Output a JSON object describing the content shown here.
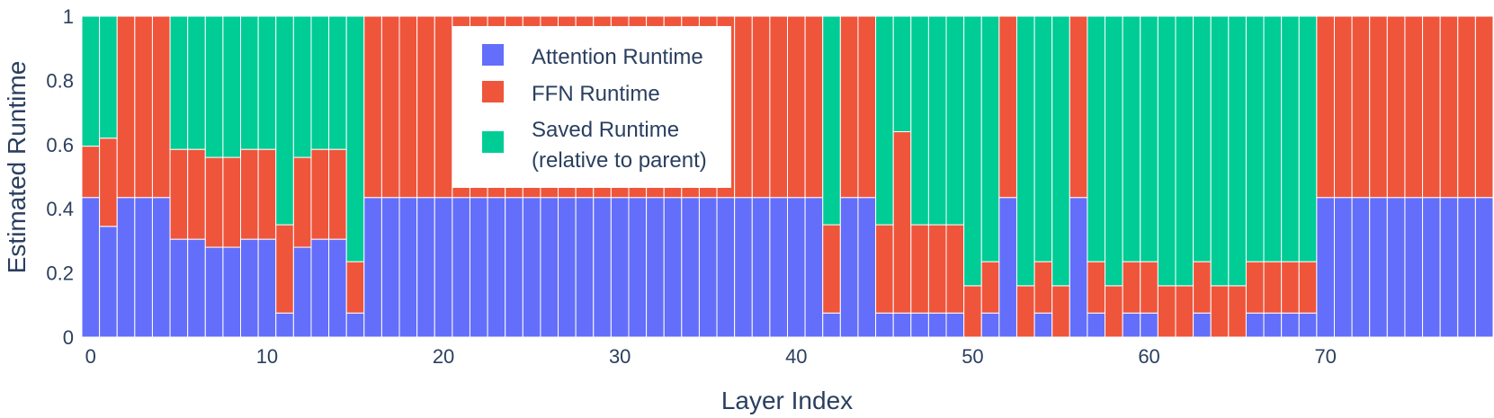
{
  "chart_data": {
    "type": "bar",
    "stacked": true,
    "xlabel": "Layer Index",
    "ylabel": "Estimated Runtime",
    "ylim": [
      0,
      1
    ],
    "xlim": [
      -0.5,
      79.5
    ],
    "xticks": [
      0,
      10,
      20,
      30,
      40,
      50,
      60,
      70
    ],
    "yticks": [
      0,
      0.2,
      0.4,
      0.6,
      0.8,
      1
    ],
    "ytick_labels": [
      "0",
      "0.2",
      "0.4",
      "0.6",
      "0.8",
      "1"
    ],
    "grid": false,
    "legend_position": "top-center",
    "legend": [
      "Attention Runtime",
      "FFN Runtime",
      "Saved Runtime",
      "(relative to parent)"
    ],
    "series": [
      {
        "name": "Attention Runtime",
        "color": "#636efa",
        "values": [
          0.435,
          0.345,
          0.435,
          0.435,
          0.435,
          0.305,
          0.305,
          0.28,
          0.28,
          0.305,
          0.305,
          0.075,
          0.28,
          0.305,
          0.305,
          0.075,
          0.435,
          0.435,
          0.435,
          0.435,
          0.435,
          0.435,
          0.435,
          0.435,
          0.435,
          0.435,
          0.435,
          0.435,
          0.435,
          0.435,
          0.435,
          0.435,
          0.435,
          0.435,
          0.435,
          0.435,
          0.435,
          0.435,
          0.435,
          0.435,
          0.435,
          0.435,
          0.075,
          0.435,
          0.435,
          0.075,
          0.075,
          0.075,
          0.075,
          0.075,
          0,
          0.075,
          0.435,
          0,
          0.075,
          0,
          0.435,
          0.075,
          0,
          0.075,
          0.075,
          0,
          0,
          0.075,
          0,
          0,
          0.075,
          0.075,
          0.075,
          0.075,
          0.435,
          0.435,
          0.435,
          0.435,
          0.435,
          0.435,
          0.435,
          0.435,
          0.435,
          0.435
        ]
      },
      {
        "name": "FFN Runtime",
        "color": "#ef553b",
        "values": [
          0.16,
          0.275,
          0.565,
          0.565,
          0.565,
          0.28,
          0.28,
          0.28,
          0.28,
          0.28,
          0.28,
          0.275,
          0.28,
          0.28,
          0.28,
          0.16,
          0.565,
          0.565,
          0.565,
          0.565,
          0.565,
          0.565,
          0.565,
          0.565,
          0.565,
          0.565,
          0.565,
          0.565,
          0.565,
          0.565,
          0.565,
          0.565,
          0.565,
          0.565,
          0.565,
          0.565,
          0.565,
          0.565,
          0.565,
          0.565,
          0.565,
          0.565,
          0.275,
          0.565,
          0.565,
          0.275,
          0.565,
          0.275,
          0.275,
          0.275,
          0.16,
          0.16,
          0.565,
          0.16,
          0.16,
          0.16,
          0.565,
          0.16,
          0.16,
          0.16,
          0.16,
          0.16,
          0.16,
          0.16,
          0.16,
          0.16,
          0.16,
          0.16,
          0.16,
          0.16,
          0.565,
          0.565,
          0.565,
          0.565,
          0.565,
          0.565,
          0.565,
          0.565,
          0.565,
          0.565
        ]
      },
      {
        "name": "Saved Runtime",
        "color": "#00cc96",
        "values": [
          0.405,
          0.38,
          0,
          0,
          0,
          0.415,
          0.415,
          0.44,
          0.44,
          0.415,
          0.415,
          0.65,
          0.44,
          0.415,
          0.415,
          0.765,
          0,
          0,
          0,
          0,
          0,
          0,
          0,
          0,
          0,
          0,
          0,
          0,
          0,
          0,
          0,
          0,
          0,
          0,
          0,
          0,
          0,
          0,
          0,
          0,
          0,
          0,
          0.65,
          0,
          0,
          0.65,
          0.36,
          0.65,
          0.65,
          0.65,
          0.84,
          0.765,
          0,
          0.84,
          0.765,
          0.84,
          0,
          0.765,
          0.84,
          0.765,
          0.765,
          0.84,
          0.84,
          0.765,
          0.84,
          0.84,
          0.765,
          0.765,
          0.765,
          0.765,
          0,
          0,
          0,
          0,
          0,
          0,
          0,
          0,
          0,
          0
        ]
      }
    ]
  }
}
